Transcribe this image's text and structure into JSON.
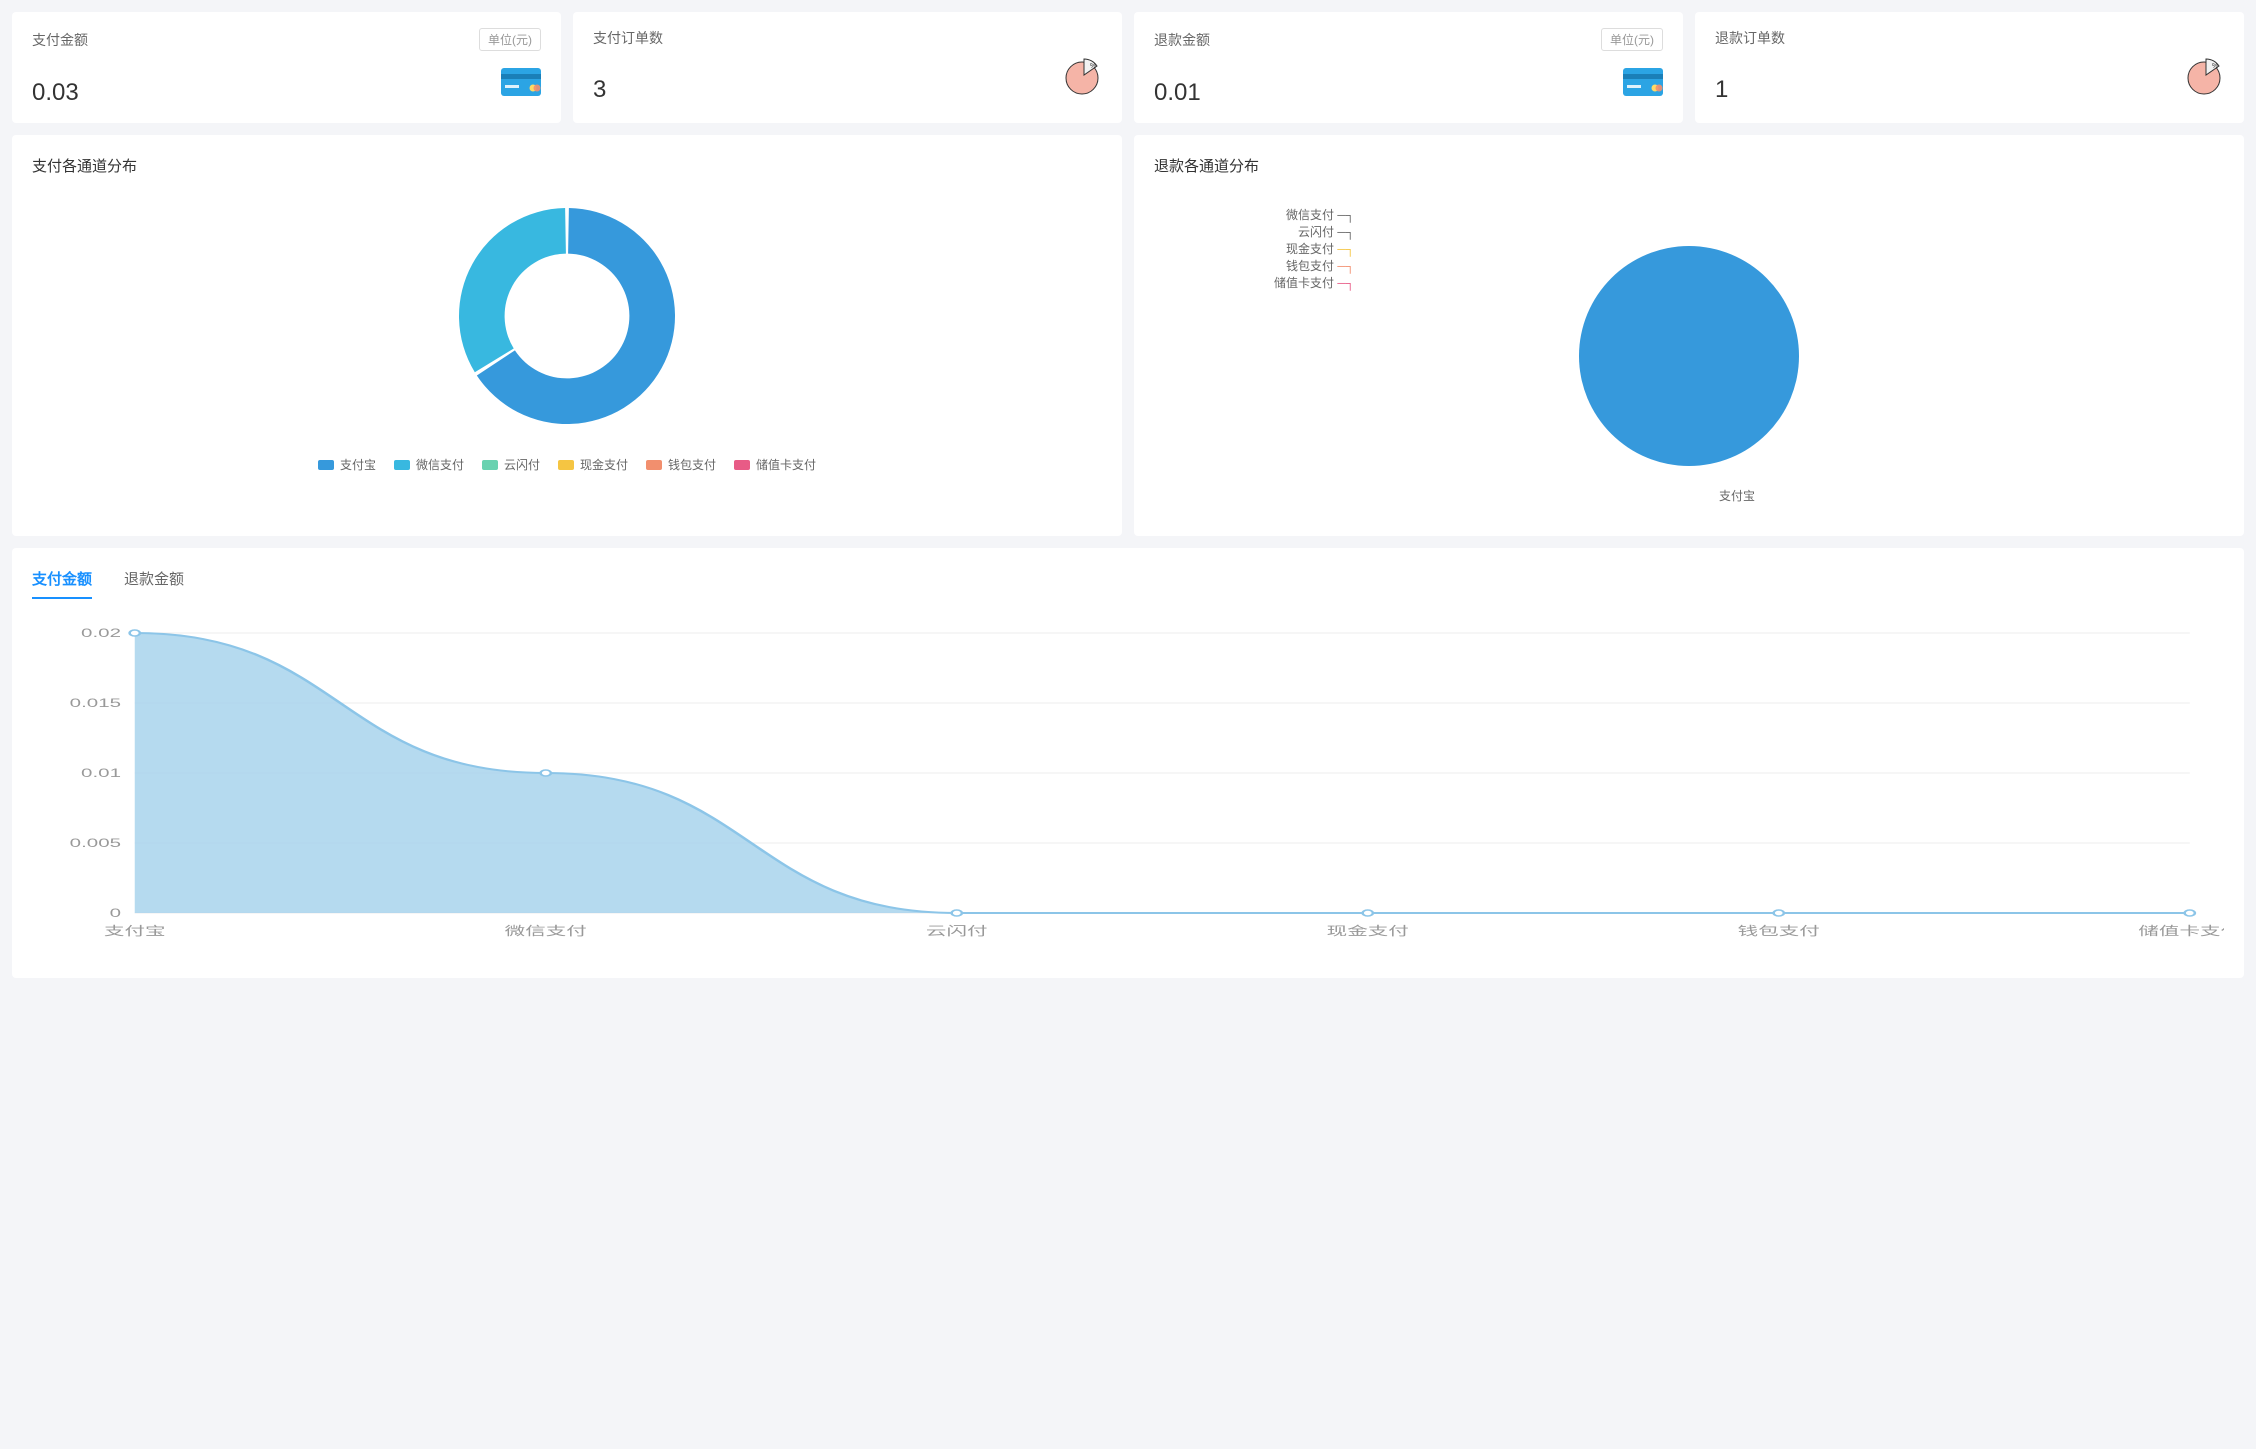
{
  "stats": {
    "pay_amount": {
      "title": "支付金额",
      "unit": "单位(元)",
      "value": "0.03",
      "icon": "card",
      "icon_bg": "#2ba4e4"
    },
    "pay_orders": {
      "title": "支付订单数",
      "unit": "",
      "value": "3",
      "icon": "pie",
      "icon_fill": "#f5b4a7",
      "icon_slice": "#e0e0e0",
      "icon_percent": "%"
    },
    "refund_amount": {
      "title": "退款金额",
      "unit": "单位(元)",
      "value": "0.01",
      "icon": "card",
      "icon_bg": "#2ba4e4"
    },
    "refund_orders": {
      "title": "退款订单数",
      "unit": "",
      "value": "1",
      "icon": "pie",
      "icon_fill": "#f5b4a7",
      "icon_slice": "#e0e0e0",
      "icon_percent": "%"
    }
  },
  "donut": {
    "title": "支付各通道分布",
    "type": "donut",
    "inner_radius": 52,
    "outer_radius": 90,
    "gap_deg": 2,
    "series": [
      {
        "label": "支付宝",
        "value": 0.66,
        "color": "#3699dc"
      },
      {
        "label": "微信支付",
        "value": 0.34,
        "color": "#38b8e0"
      },
      {
        "label": "云闪付",
        "value": 0,
        "color": "#69d2b0"
      },
      {
        "label": "现金支付",
        "value": 0,
        "color": "#f5c542"
      },
      {
        "label": "钱包支付",
        "value": 0,
        "color": "#f28f6e"
      },
      {
        "label": "储值卡支付",
        "value": 0,
        "color": "#e85b86"
      }
    ]
  },
  "pie": {
    "title": "退款各通道分布",
    "type": "pie",
    "radius": 110,
    "series": [
      {
        "label": "支付宝",
        "value": 1.0,
        "color": "#3699dc"
      },
      {
        "label": "微信支付",
        "value": 0,
        "color": "#38b8e0"
      },
      {
        "label": "云闪付",
        "value": 0,
        "color": "#69d2b0"
      },
      {
        "label": "现金支付",
        "value": 0,
        "color": "#f5c542"
      },
      {
        "label": "钱包支付",
        "value": 0,
        "color": "#f28f6e"
      },
      {
        "label": "储值卡支付",
        "value": 0,
        "color": "#e85b86"
      }
    ],
    "side_labels": [
      "微信支付",
      "云闪付",
      "现金支付",
      "钱包支付",
      "储值卡支付"
    ],
    "side_label_colors": [
      "#666",
      "#666",
      "#f5c542",
      "#f28f6e",
      "#e85b86"
    ],
    "main_label": "支付宝"
  },
  "area": {
    "tabs": [
      "支付金额",
      "退款金额"
    ],
    "active_tab": 0,
    "type": "area",
    "categories": [
      "支付宝",
      "微信支付",
      "云闪付",
      "现金支付",
      "钱包支付",
      "储值卡支付"
    ],
    "values": [
      0.02,
      0.01,
      0,
      0,
      0,
      0
    ],
    "ylim": [
      0,
      0.02
    ],
    "ytick_step": 0.005,
    "yticks": [
      "0",
      "0.005",
      "0.01",
      "0.015",
      "0.02"
    ],
    "line_color": "#8cc5e8",
    "fill_color": "#a8d3ec",
    "fill_opacity": 0.85,
    "background": "#ffffff",
    "grid_color": "#ececec",
    "axis_label_fontsize": 12,
    "marker_style": "circle",
    "marker_radius": 3
  },
  "colors": {
    "page_bg": "#f4f5f8",
    "card_bg": "#ffffff",
    "text_primary": "#333333",
    "text_secondary": "#666666",
    "text_muted": "#999999",
    "accent": "#1890ff",
    "border": "#dddddd"
  }
}
